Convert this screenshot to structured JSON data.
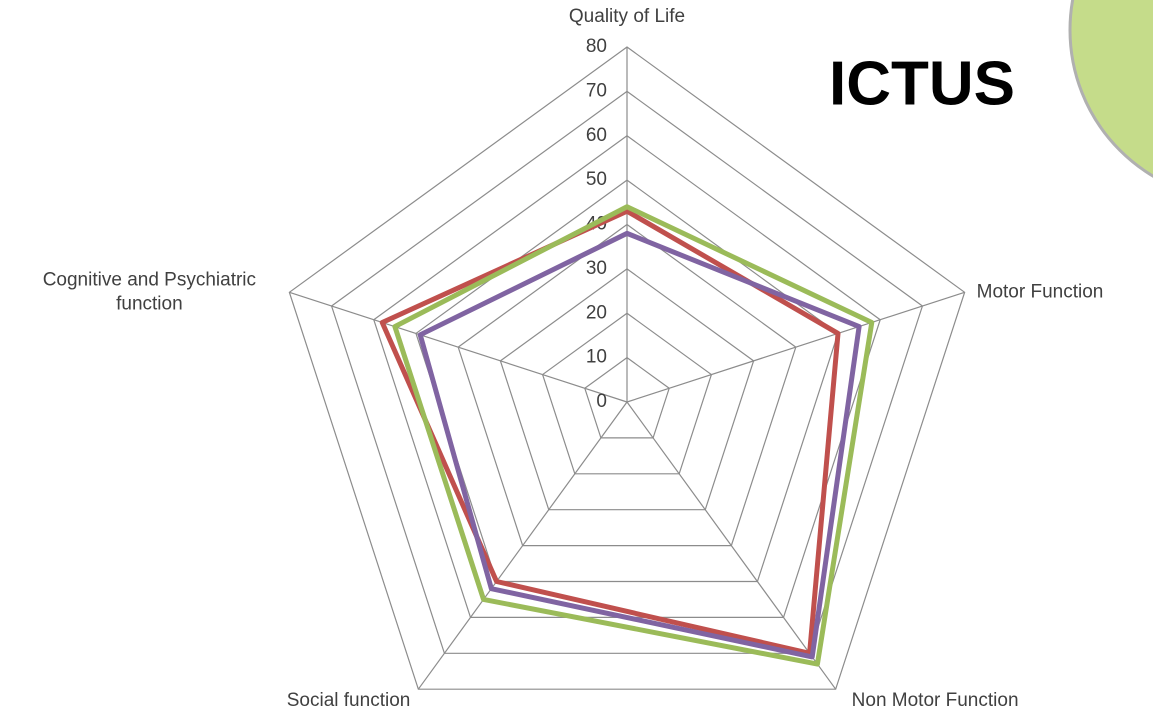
{
  "chart_data": {
    "type": "radar",
    "title": "ICTUS",
    "categories": [
      "Quality of Life",
      "Motor Function",
      "Non Motor Function",
      "Social function",
      "Cognitive and Psychiatric function"
    ],
    "series": [
      {
        "color": "#c0504d",
        "values": [
          43,
          50,
          70,
          50,
          58
        ]
      },
      {
        "color": "#9bbb59",
        "values": [
          44,
          58,
          73,
          55,
          55
        ]
      },
      {
        "color": "#8064a2",
        "values": [
          38,
          55,
          71,
          52,
          49
        ]
      }
    ],
    "ylim": [
      0,
      80
    ],
    "yticks": [
      0,
      10,
      20,
      30,
      40,
      50,
      60,
      70,
      80
    ],
    "grid": true
  }
}
